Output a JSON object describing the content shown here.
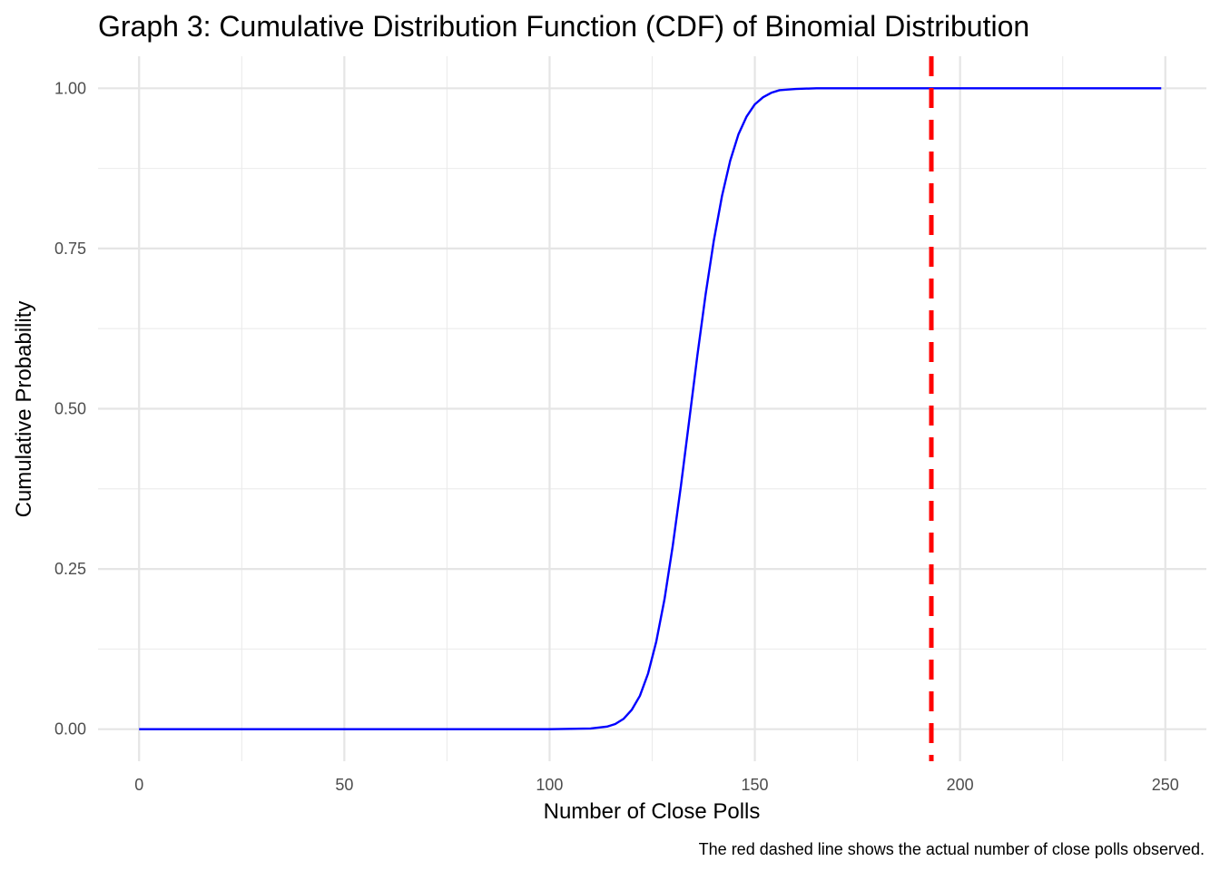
{
  "chart_data": {
    "type": "line",
    "title": "Graph 3: Cumulative Distribution Function (CDF) of Binomial Distribution",
    "xlabel": "Number of Close Polls",
    "ylabel": "Cumulative Probability",
    "caption": "The red dashed line shows the actual number of close polls observed.",
    "xlim": [
      -10,
      260
    ],
    "ylim": [
      -0.05,
      1.05
    ],
    "x_ticks": [
      0,
      50,
      100,
      150,
      200,
      250
    ],
    "x_tick_labels": [
      "0",
      "50",
      "100",
      "150",
      "200",
      "250"
    ],
    "y_ticks": [
      0,
      0.25,
      0.5,
      0.75,
      1
    ],
    "y_tick_labels": [
      "0.00",
      "0.25",
      "0.50",
      "0.75",
      "1.00"
    ],
    "grid": true,
    "series": [
      {
        "color": "#0000ff",
        "x": [
          0,
          100,
          110,
          114,
          116,
          118,
          120,
          122,
          124,
          126,
          128,
          130,
          132,
          134,
          136,
          138,
          140,
          142,
          144,
          146,
          148,
          150,
          152,
          154,
          156,
          158,
          160,
          165,
          249
        ],
        "y": [
          0,
          0,
          0.001,
          0.004,
          0.008,
          0.016,
          0.03,
          0.052,
          0.087,
          0.137,
          0.203,
          0.286,
          0.38,
          0.481,
          0.583,
          0.678,
          0.762,
          0.832,
          0.887,
          0.928,
          0.956,
          0.975,
          0.986,
          0.993,
          0.997,
          0.998,
          0.999,
          1,
          1
        ]
      }
    ],
    "reference_line": {
      "axis": "x",
      "value": 193,
      "color": "#ff0000",
      "style": "dashed"
    }
  }
}
